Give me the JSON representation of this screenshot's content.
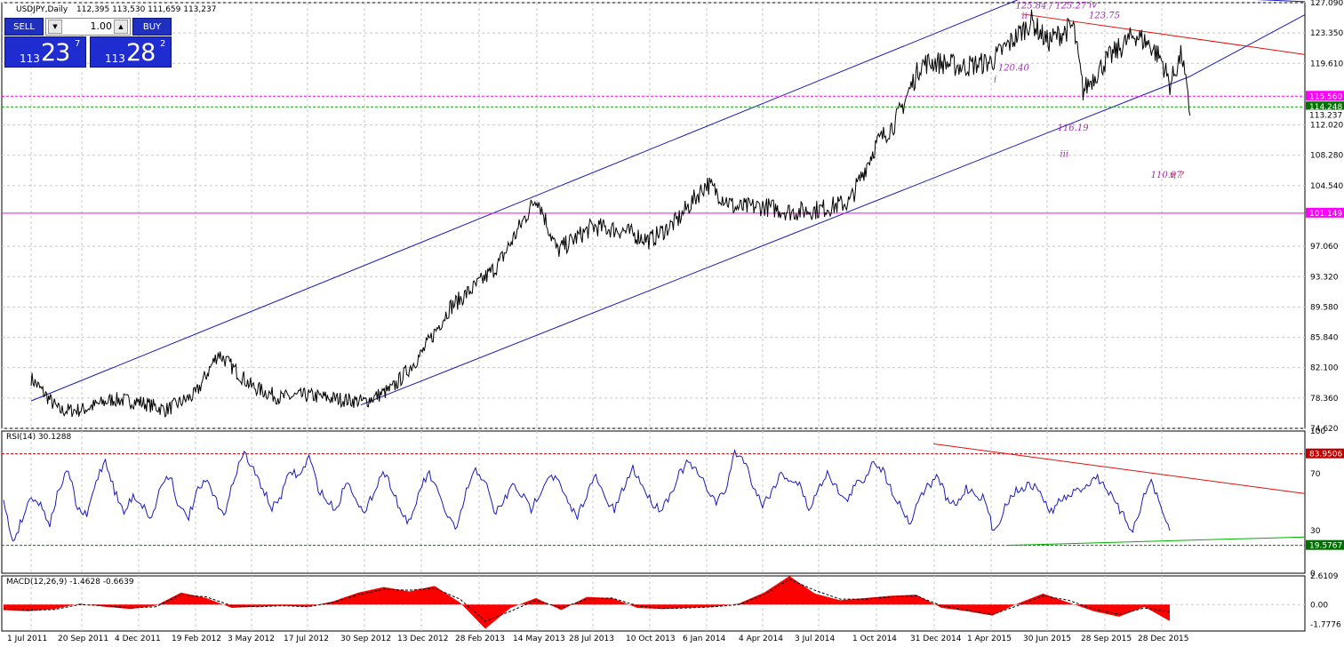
{
  "header": {
    "symbol": "USDJPY,Daily",
    "ohlc": "112,395 113,530 111,659 113,237"
  },
  "trade_panel": {
    "sell_label": "SELL",
    "buy_label": "BUY",
    "lot": "1.00",
    "sell_price": {
      "small": "113",
      "big": "23",
      "sup": "7"
    },
    "buy_price": {
      "small": "113",
      "big": "28",
      "sup": "2"
    },
    "down_arrow": "▼",
    "up_arrow": "▲"
  },
  "colors": {
    "price_line": "#000000",
    "channel": "#1a1ab8",
    "resistance": "#e01010",
    "annotation": "#9b2fae",
    "magenta_line": "#ff00ff",
    "green_line": "#00b000",
    "rsi_line": "#1a1ab8",
    "macd_hist": "#ff0000",
    "grid": "#c8c8c8"
  },
  "chart_data": [
    {
      "type": "line",
      "panel": "price",
      "title": "USDJPY,Daily",
      "ylim": [
        74.62,
        127.09
      ],
      "yticks": [
        "127.090",
        "123.350",
        "119.610",
        "115.560",
        "114.248",
        "113.237",
        "112.020",
        "108.280",
        "104.540",
        "101.149",
        "97.060",
        "93.320",
        "89.580",
        "85.840",
        "82.100",
        "78.360",
        "74.620"
      ],
      "price_labels": [
        {
          "value": 115.56,
          "label": "115.560",
          "color": "#ff00ff"
        },
        {
          "value": 114.248,
          "label": "114.248",
          "color": "#007000"
        },
        {
          "value": 113.237,
          "label": "113.237",
          "color": "#000000"
        },
        {
          "value": 101.149,
          "label": "101.149",
          "color": "#ff00ff"
        }
      ],
      "x_dates": [
        "2011-07-01",
        "2011-09-20",
        "2011-12-04",
        "2012-02-19",
        "2012-05-03",
        "2012-07-17",
        "2012-09-30",
        "2012-12-13",
        "2013-02-28",
        "2013-05-14",
        "2013-07-28",
        "2013-10-10",
        "2014-01-06",
        "2014-04-04",
        "2014-07-03",
        "2014-10-01",
        "2014-12-31",
        "2015-04-01",
        "2015-06-30",
        "2015-09-28",
        "2015-12-28"
      ],
      "xtick_labels": [
        "1 Jul 2011",
        "20 Sep 2011",
        "4 Dec 2011",
        "19 Feb 2012",
        "3 May 2012",
        "17 Jul 2012",
        "30 Sep 2012",
        "13 Dec 2012",
        "28 Feb 2013",
        "14 May 2013",
        "28 Jul 2013",
        "10 Oct 2013",
        "6 Jan 2014",
        "4 Apr 2014",
        "3 Jul 2014",
        "1 Oct 2014",
        "31 Dec 2014",
        "1 Apr 2015",
        "30 Jun 2015",
        "28 Sep 2015",
        "28 Dec 2015"
      ],
      "series": [
        {
          "x": [
            "2011-07-01",
            "2011-08-15",
            "2011-09-20",
            "2011-10-31",
            "2011-12-04",
            "2012-01-10",
            "2012-02-19",
            "2012-03-20",
            "2012-05-03",
            "2012-06-10",
            "2012-07-17",
            "2012-08-20",
            "2012-09-30",
            "2012-11-05",
            "2012-12-13",
            "2013-01-20",
            "2013-02-28",
            "2013-03-25",
            "2013-05-14",
            "2013-06-10",
            "2013-07-28",
            "2013-09-05",
            "2013-10-10",
            "2013-11-20",
            "2014-01-06",
            "2014-02-20",
            "2014-04-04",
            "2014-05-20",
            "2014-07-03",
            "2014-08-20",
            "2014-10-01",
            "2014-10-31",
            "2014-12-10",
            "2014-12-31",
            "2015-02-15",
            "2015-04-01",
            "2015-06-05",
            "2015-06-30",
            "2015-08-10",
            "2015-08-25",
            "2015-09-28",
            "2015-11-15",
            "2015-12-10",
            "2015-12-28",
            "2016-01-10",
            "2016-01-29",
            "2016-02-11"
          ],
          "values": [
            80.8,
            76.8,
            76.9,
            78.2,
            77.9,
            76.9,
            78.8,
            83.9,
            79.8,
            78.4,
            78.7,
            78.3,
            77.9,
            79.5,
            83.8,
            89.5,
            92.5,
            94.8,
            103.2,
            96.5,
            99.5,
            99.0,
            97.8,
            100.1,
            104.8,
            101.8,
            102.0,
            101.3,
            101.6,
            102.5,
            109.7,
            112.4,
            119.5,
            119.8,
            119.2,
            119.8,
            124.8,
            122.3,
            124.2,
            116.2,
            119.8,
            123.2,
            121.8,
            120.0,
            117.0,
            120.8,
            113.2
          ]
        }
      ],
      "annotations": [
        {
          "text": "125.84 / 125.27",
          "x": "2015-06-05",
          "y": 126.4,
          "color": "#9b2fae"
        },
        {
          "text": "ii",
          "x": "2015-06-15",
          "y": 125.1,
          "color": "#9b2fae"
        },
        {
          "text": "iv",
          "x": "2015-09-28",
          "y": 126.5,
          "color": "#9b2fae"
        },
        {
          "text": "123.75",
          "x": "2015-09-28",
          "y": 125.2,
          "color": "#9b2fae"
        },
        {
          "text": "120.40",
          "x": "2015-05-08",
          "y": 118.7,
          "color": "#9b2fae"
        },
        {
          "text": "i",
          "x": "2015-05-01",
          "y": 117.3,
          "color": "#9b2fae"
        },
        {
          "text": "116.19",
          "x": "2015-08-10",
          "y": 111.3,
          "color": "#9b2fae"
        },
        {
          "text": "iii",
          "x": "2015-08-14",
          "y": 108.1,
          "color": "#9b2fae"
        },
        {
          "text": "110.97",
          "x": "2016-01-05",
          "y": 105.5,
          "color": "#9b2fae"
        },
        {
          "text": "v, ?",
          "x": "2016-02-04",
          "y": 105.5,
          "color": "#cc2222"
        }
      ]
    },
    {
      "type": "line",
      "panel": "rsi",
      "title": "RSI(14) 30.1288",
      "ylim": [
        0,
        100
      ],
      "yticks": [
        "100",
        "83.9506",
        "70",
        "30",
        "19.5767",
        "0"
      ],
      "levels": [
        {
          "value": 83.9506,
          "label": "83.9506",
          "color": "#c00000"
        },
        {
          "value": 19.5767,
          "label": "19.5767",
          "color": "#007000"
        }
      ],
      "series": [
        {
          "name": "RSI(14)",
          "values": [
            50,
            22,
            38,
            55,
            48,
            35,
            60,
            72,
            45,
            40,
            65,
            80,
            58,
            42,
            55,
            48,
            38,
            62,
            70,
            45,
            40,
            58,
            65,
            50,
            42,
            70,
            85,
            72,
            60,
            45,
            55,
            72,
            68,
            82,
            60,
            50,
            45,
            65,
            55,
            40,
            58,
            72,
            60,
            42,
            35,
            60,
            70,
            55,
            40,
            30,
            58,
            72,
            66,
            42,
            50,
            62,
            55,
            45,
            58,
            70,
            64,
            48,
            40,
            56,
            68,
            52,
            44,
            60,
            74,
            62,
            50,
            45,
            55,
            70,
            78,
            70,
            60,
            50,
            58,
            85,
            80,
            62,
            48,
            58,
            70,
            66,
            62,
            45,
            58,
            72,
            60,
            50,
            62,
            66,
            80,
            72,
            58,
            46,
            35,
            55,
            62,
            68,
            50,
            48,
            60,
            56,
            52,
            28,
            44,
            56,
            60,
            62,
            58,
            42,
            50,
            54,
            58,
            62,
            68,
            62,
            50,
            40,
            30,
            50,
            66,
            45,
            30
          ]
        }
      ]
    },
    {
      "type": "area",
      "panel": "macd",
      "title": "MACD(12,26,9) -1.4628 -0.6639",
      "ylim": [
        -2.4,
        2.6109
      ],
      "yticks": [
        "2.6109",
        "0.00",
        "-1.7776"
      ],
      "series": [
        {
          "name": "MACD",
          "values": [
            -0.5,
            -0.6,
            -0.4,
            0.1,
            -0.2,
            -0.4,
            -0.1,
            1.1,
            0.6,
            -0.3,
            -0.2,
            -0.1,
            -0.2,
            0.3,
            1.1,
            1.6,
            1.2,
            1.7,
            0.2,
            -2.2,
            -0.3,
            0.6,
            -0.5,
            0.7,
            0.6,
            -0.3,
            -0.4,
            -0.3,
            -0.2,
            0.1,
            1.1,
            2.6,
            1.0,
            0.4,
            0.6,
            0.8,
            0.9,
            -0.3,
            -0.6,
            -1.0,
            0.1,
            1.0,
            0.2,
            -0.6,
            -1.1,
            -0.2,
            -1.5
          ]
        },
        {
          "name": "Signal",
          "values": [
            -0.4,
            -0.5,
            -0.45,
            0.0,
            -0.1,
            -0.3,
            -0.2,
            0.9,
            0.7,
            -0.1,
            -0.2,
            -0.1,
            -0.2,
            0.2,
            0.9,
            1.4,
            1.3,
            1.5,
            0.5,
            -1.5,
            -0.6,
            0.4,
            -0.3,
            0.5,
            0.6,
            -0.1,
            -0.35,
            -0.3,
            -0.2,
            0.0,
            0.9,
            2.3,
            1.3,
            0.5,
            0.5,
            0.7,
            0.8,
            -0.1,
            -0.5,
            -0.9,
            -0.1,
            0.8,
            0.4,
            -0.4,
            -0.9,
            -0.3,
            -0.66
          ]
        }
      ]
    }
  ]
}
